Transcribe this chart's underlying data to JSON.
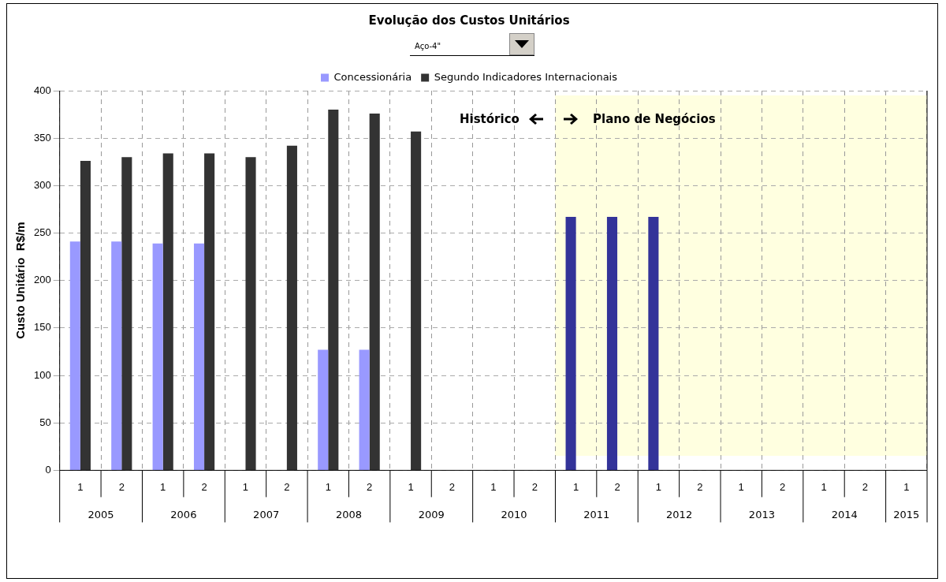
{
  "chart_data": {
    "type": "bar",
    "title": "Evolução dos Custos Unitários",
    "subtitle": "Aço-4\"",
    "ylabel": "Custo Unitário  R$/m",
    "categories": [
      "1",
      "2",
      "1",
      "2",
      "1",
      "2",
      "1",
      "2",
      "1",
      "2",
      "1",
      "2",
      "1",
      "2",
      "1",
      "2",
      "1",
      "2",
      "1",
      "2",
      "1"
    ],
    "series": [
      {
        "name": "Concessionária",
        "color": "#9999ff",
        "colors": [
          "#9999ff",
          "#9999ff",
          "#9999ff",
          "#9999ff",
          "#9999ff",
          "#9999ff",
          "#9999ff",
          "#9999ff",
          "#9999ff",
          "#9999ff",
          "#9999ff",
          "#9999ff",
          "#333399",
          "#333399",
          "#333399",
          "#9999ff",
          "#9999ff",
          "#9999ff",
          "#9999ff",
          "#9999ff",
          "#9999ff"
        ],
        "values": [
          241,
          241,
          239,
          239,
          null,
          null,
          127,
          127,
          null,
          null,
          null,
          null,
          267,
          267,
          267,
          null,
          null,
          null,
          null,
          null,
          null
        ]
      },
      {
        "name": "Segundo Indicadores Internacionais",
        "color": "#333333",
        "values": [
          326,
          330,
          334,
          334,
          330,
          342,
          380,
          376,
          357,
          null,
          null,
          null,
          null,
          null,
          null,
          null,
          null,
          null,
          null,
          null,
          null
        ]
      }
    ],
    "ylim": [
      0,
      400
    ],
    "yticks": [
      0,
      50,
      100,
      150,
      200,
      250,
      300,
      350,
      400
    ],
    "grid": true,
    "legend": "top",
    "annotations": [
      "Histórico",
      "Plano de Negócios",
      "2005",
      "2006",
      "2007",
      "2008",
      "2009",
      "2010",
      "2011",
      "2012",
      "2013",
      "2014",
      "2015"
    ]
  }
}
